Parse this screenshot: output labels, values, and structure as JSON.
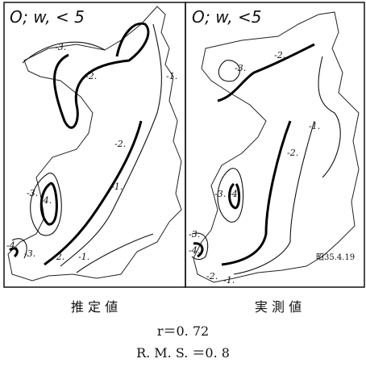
{
  "panels": [
    {
      "title": "O; w, < 5",
      "contour_labels": [
        "-3.",
        "-2.",
        "-1.",
        "-2.",
        "-1.",
        "-3.",
        "-4.",
        "-4.",
        "-3.",
        "-2.",
        "-1."
      ]
    },
    {
      "title": "O; w, <5",
      "contour_labels": [
        "-3.",
        "-2.",
        "-1.",
        "-2.",
        "-3.",
        "-4.",
        "-3.",
        "-4.",
        "-2.",
        "-1."
      ],
      "date": "昭35.4.19"
    }
  ],
  "captions": [
    "推 定 値",
    "実 測 値"
  ],
  "stats": [
    "r＝0. 72",
    "R. M. S. ＝0. 8"
  ]
}
